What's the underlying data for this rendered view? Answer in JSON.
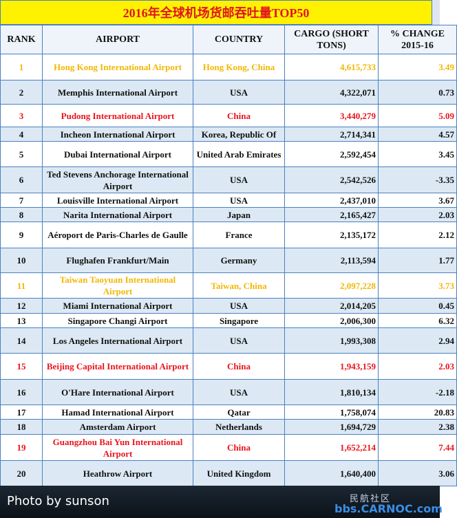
{
  "header": {
    "title": "2016年全球机场货邮吞吐量TOP50"
  },
  "table": {
    "columns": [
      "RANK",
      "AIRPORT",
      "COUNTRY",
      "CARGO (SHORT TONS)",
      "% CHANGE 2015-16"
    ],
    "rows": [
      [
        "1",
        "Hong Kong International Airport",
        "Hong Kong, China",
        "4,615,733",
        "3.49"
      ],
      [
        "2",
        "Memphis International Airport",
        "USA",
        "4,322,071",
        "0.73"
      ],
      [
        "3",
        "Pudong International Airport",
        "China",
        "3,440,279",
        "5.09"
      ],
      [
        "4",
        "Incheon International Airport",
        "Korea, Republic Of",
        "2,714,341",
        "4.57"
      ],
      [
        "5",
        "Dubai International Airport",
        "United Arab Emirates",
        "2,592,454",
        "3.45"
      ],
      [
        "6",
        "Ted Stevens Anchorage International Airport",
        "USA",
        "2,542,526",
        "-3.35"
      ],
      [
        "7",
        "Louisville International Airport",
        "USA",
        "2,437,010",
        "3.67"
      ],
      [
        "8",
        "Narita International Airport",
        "Japan",
        "2,165,427",
        "2.03"
      ],
      [
        "9",
        "Aéroport de Paris-Charles de Gaulle",
        "France",
        "2,135,172",
        "2.12"
      ],
      [
        "10",
        "Flughafen Frankfurt/Main",
        "Germany",
        "2,113,594",
        "1.77"
      ],
      [
        "11",
        "Taiwan Taoyuan International Airport",
        "Taiwan, China",
        "2,097,228",
        "3.73"
      ],
      [
        "12",
        "Miami International Airport",
        "USA",
        "2,014,205",
        "0.45"
      ],
      [
        "13",
        "Singapore Changi Airport",
        "Singapore",
        "2,006,300",
        "6.32"
      ],
      [
        "14",
        "Los Angeles International Airport",
        "USA",
        "1,993,308",
        "2.94"
      ],
      [
        "15",
        "Beijing Capital International Airport",
        "China",
        "1,943,159",
        "2.03"
      ],
      [
        "16",
        "O'Hare International Airport",
        "USA",
        "1,810,134",
        "-2.18"
      ],
      [
        "17",
        "Hamad International Airport",
        "Qatar",
        "1,758,074",
        "20.83"
      ],
      [
        "18",
        "Amsterdam Airport",
        "Netherlands",
        "1,694,729",
        "2.38"
      ],
      [
        "19",
        "Guangzhou Bai Yun International Airport",
        "China",
        "1,652,214",
        "7.44"
      ],
      [
        "20",
        "Heathrow Airport",
        "United Kingdom",
        "1,640,400",
        "3.06"
      ]
    ],
    "row_colors": [
      "#f2b705",
      "#111111",
      "#e8141c",
      "#111111",
      "#111111",
      "#111111",
      "#111111",
      "#111111",
      "#111111",
      "#111111",
      "#f2b705",
      "#111111",
      "#111111",
      "#111111",
      "#e8141c",
      "#111111",
      "#111111",
      "#111111",
      "#e8141c",
      "#111111"
    ]
  },
  "footer": {
    "credit": "Photo by sunson",
    "site_name": "民航社区",
    "site_url": "bbs.CARNOC.com"
  }
}
